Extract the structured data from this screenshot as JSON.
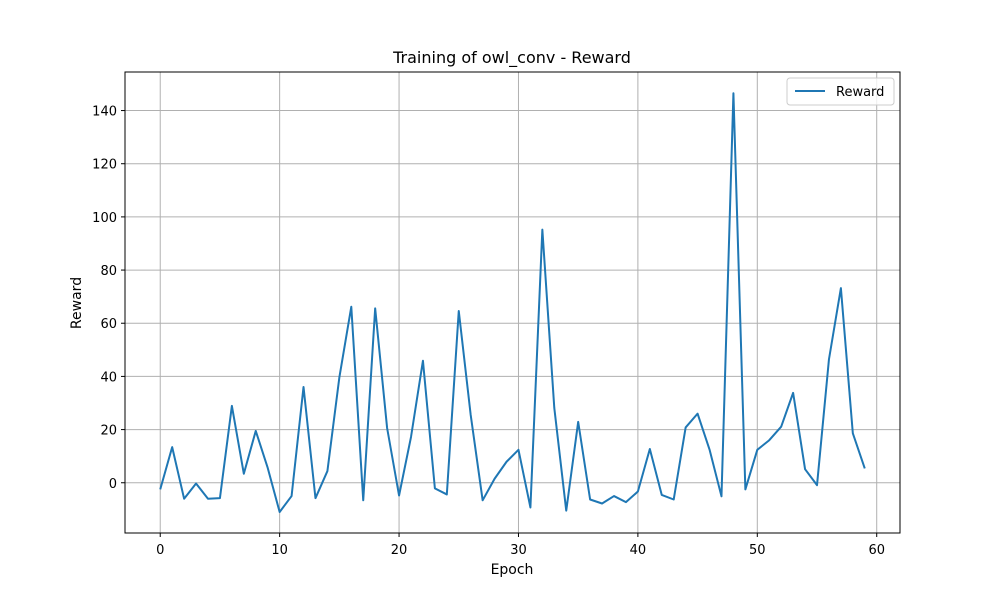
{
  "chart_data": {
    "type": "line",
    "title": "Training of owl_conv - Reward",
    "xlabel": "Epoch",
    "ylabel": "Reward",
    "xlim": [
      -2.95,
      61.95
    ],
    "ylim": [
      -18.9,
      154.5
    ],
    "xticks": [
      0,
      10,
      20,
      30,
      40,
      50,
      60
    ],
    "yticks": [
      0,
      20,
      40,
      60,
      80,
      100,
      120,
      140
    ],
    "grid": true,
    "legend": {
      "position": "top-right",
      "entries": [
        "Reward"
      ]
    },
    "colors": {
      "line": "#1f77b4",
      "grid": "#b0b0b0"
    },
    "series": [
      {
        "name": "Reward",
        "x": [
          0,
          1,
          2,
          3,
          4,
          5,
          6,
          7,
          8,
          9,
          10,
          11,
          12,
          13,
          14,
          15,
          16,
          17,
          18,
          19,
          20,
          21,
          22,
          23,
          24,
          25,
          26,
          27,
          28,
          29,
          30,
          31,
          32,
          33,
          34,
          35,
          36,
          37,
          38,
          39,
          40,
          41,
          42,
          43,
          44,
          45,
          46,
          47,
          48,
          49,
          50,
          51,
          52,
          53,
          54,
          55,
          56,
          57,
          58,
          59
        ],
        "values": [
          -2.5,
          13.4,
          -6,
          -0.3,
          -6,
          -5.8,
          28.9,
          3.4,
          19.5,
          5.6,
          -11,
          -5,
          36,
          -5.8,
          4.4,
          39.6,
          66.2,
          -6.6,
          65.6,
          20.6,
          -4.8,
          17.2,
          45.9,
          -2.1,
          -4.4,
          64.6,
          25.5,
          -6.6,
          1.5,
          7.9,
          12.4,
          -9.3,
          95.2,
          28.1,
          -10.5,
          22.9,
          -6.3,
          -7.8,
          -5,
          -7.3,
          -3.3,
          12.7,
          -4.6,
          -6.3,
          20.8,
          26,
          12.5,
          -5.1,
          146.5,
          -2.5,
          12.4,
          16,
          21.1,
          33.8,
          5.1,
          -0.9,
          46.4,
          73.2,
          18.6,
          5.4
        ]
      }
    ]
  }
}
